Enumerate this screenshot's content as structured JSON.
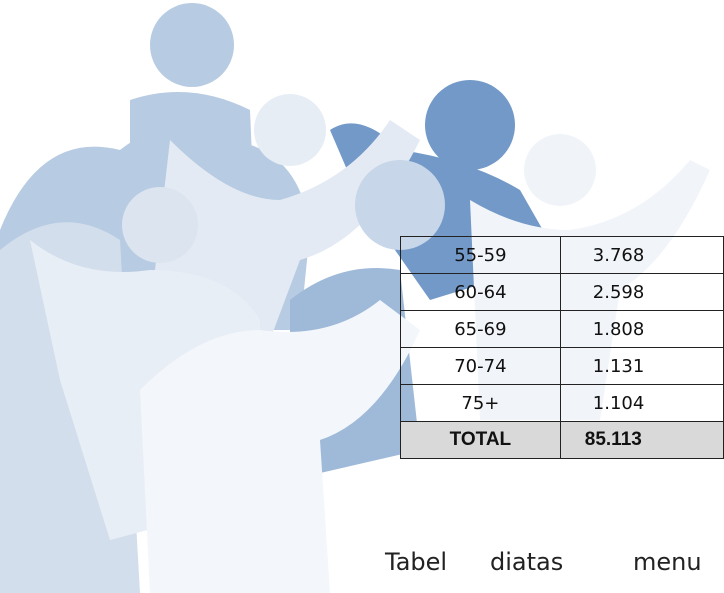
{
  "table": {
    "rows": [
      [
        "55-59",
        "3.768"
      ],
      [
        "60-64",
        "2.598"
      ],
      [
        "65-69",
        "1.808"
      ],
      [
        "70-74",
        "1.131"
      ],
      [
        "75+",
        "1.104"
      ]
    ],
    "total": [
      "TOTAL",
      "85.113"
    ]
  },
  "paragraph": {
    "words": [
      "Tabel",
      "diatas",
      "menu"
    ]
  }
}
